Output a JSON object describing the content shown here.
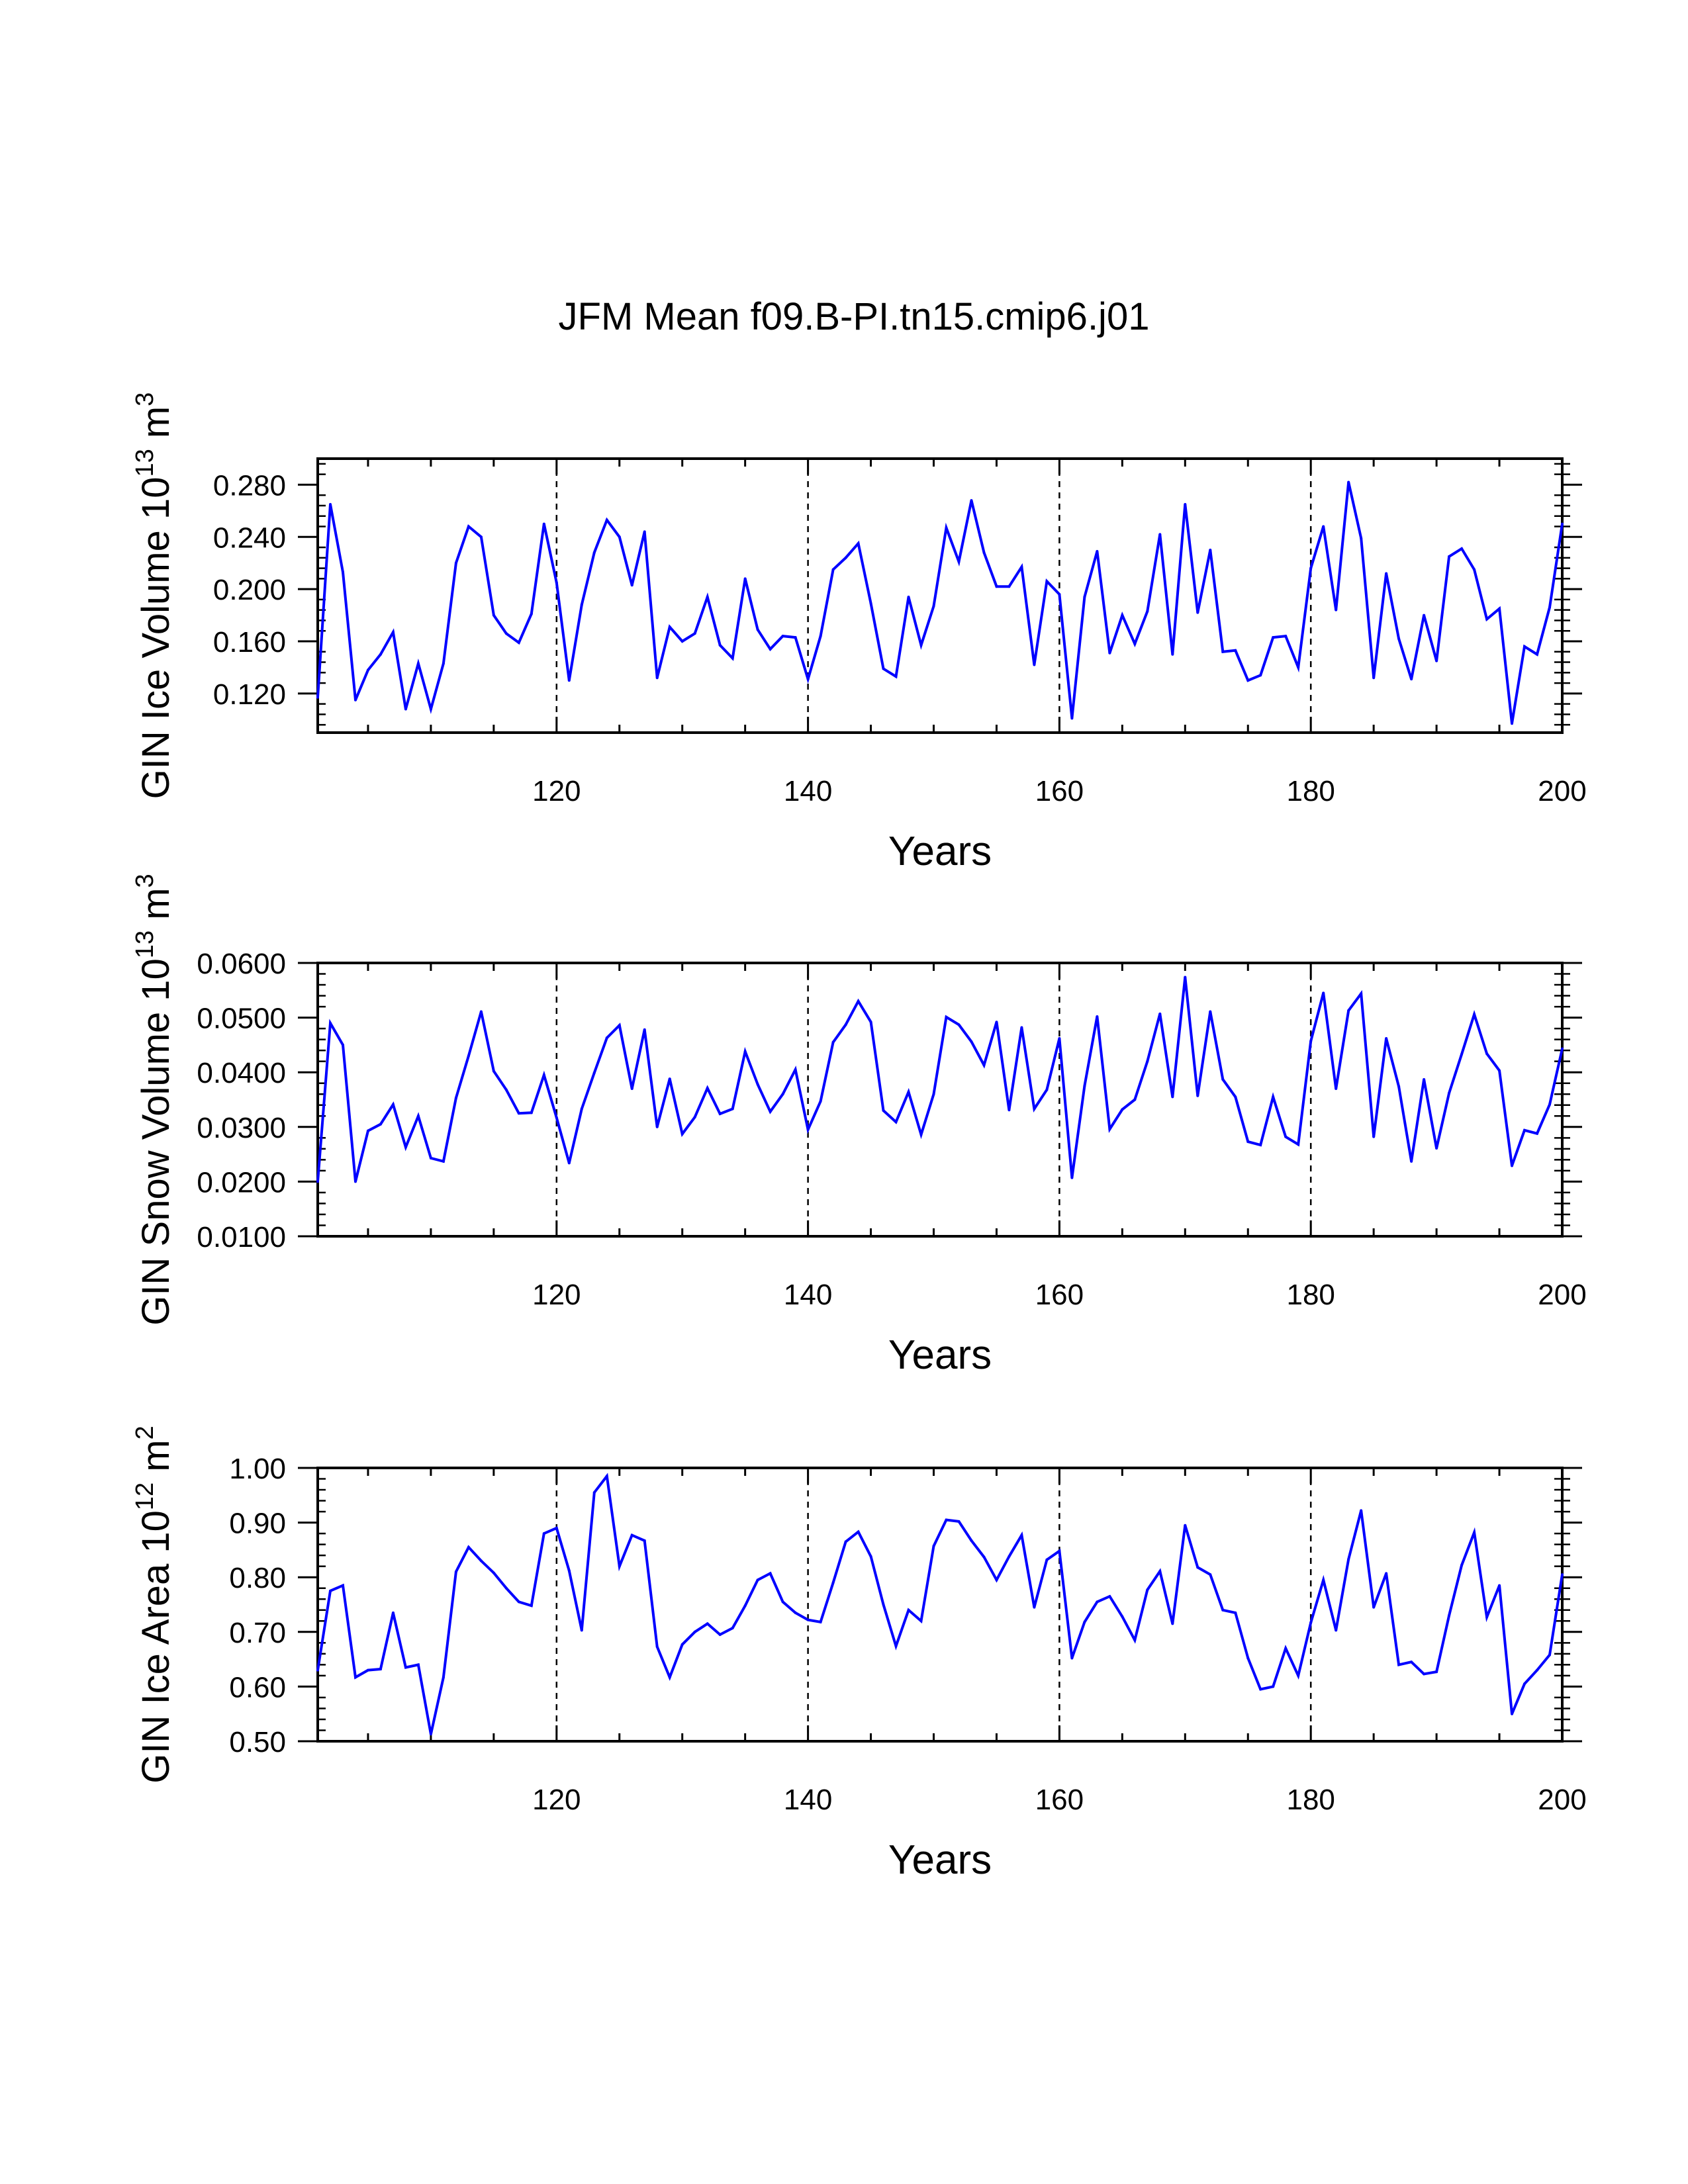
{
  "title": "JFM Mean f09.B-PI.tn15.cmip6.j01",
  "line_color": "#0000ff",
  "chart_data": [
    {
      "type": "line",
      "title": "JFM Mean f09.B-PI.tn15.cmip6.j01",
      "xlabel": "Years",
      "ylabel_main": "GIN Ice Volume 10",
      "ylabel_exp": "13",
      "ylabel_unit": " m",
      "ylabel_unit_exp": "3",
      "xlim": [
        101,
        200
      ],
      "ylim": [
        0.09,
        0.3
      ],
      "ymajor": [
        0.12,
        0.16,
        0.2,
        0.24,
        0.28
      ],
      "ytick_labels": [
        "0.120",
        "0.160",
        "0.200",
        "0.240",
        "0.280"
      ],
      "xticks": [
        120,
        140,
        160,
        180,
        200
      ],
      "xtick_labels": [
        "120",
        "140",
        "160",
        "180",
        "200"
      ],
      "vlines": [
        120,
        140,
        160,
        180
      ],
      "series": [
        {
          "name": "GIN Ice Volume",
          "x_start": 101,
          "values": [
            0.117,
            0.265,
            0.213,
            0.115,
            0.138,
            0.15,
            0.167,
            0.108,
            0.143,
            0.108,
            0.143,
            0.22,
            0.248,
            0.24,
            0.18,
            0.166,
            0.159,
            0.181,
            0.25,
            0.205,
            0.13,
            0.188,
            0.228,
            0.253,
            0.24,
            0.203,
            0.244,
            0.132,
            0.171,
            0.16,
            0.166,
            0.194,
            0.157,
            0.147,
            0.208,
            0.169,
            0.154,
            0.164,
            0.163,
            0.131,
            0.164,
            0.215,
            0.224,
            0.235,
            0.189,
            0.139,
            0.133,
            0.194,
            0.157,
            0.187,
            0.247,
            0.221,
            0.268,
            0.228,
            0.202,
            0.202,
            0.217,
            0.142,
            0.206,
            0.196,
            0.101,
            0.194,
            0.229,
            0.151,
            0.18,
            0.158,
            0.183,
            0.242,
            0.15,
            0.265,
            0.182,
            0.23,
            0.152,
            0.153,
            0.13,
            0.134,
            0.163,
            0.164,
            0.14,
            0.216,
            0.248,
            0.184,
            0.282,
            0.239,
            0.132,
            0.212,
            0.162,
            0.131,
            0.18,
            0.145,
            0.225,
            0.231,
            0.215,
            0.177,
            0.185,
            0.097,
            0.156,
            0.15,
            0.186,
            0.25
          ]
        }
      ]
    },
    {
      "type": "line",
      "xlabel": "Years",
      "ylabel_main": "GIN Snow Volume 10",
      "ylabel_exp": "13",
      "ylabel_unit": " m",
      "ylabel_unit_exp": "3",
      "xlim": [
        101,
        200
      ],
      "ylim": [
        0.01,
        0.06
      ],
      "ymajor": [
        0.01,
        0.02,
        0.03,
        0.04,
        0.05,
        0.06
      ],
      "ytick_labels": [
        "0.0100",
        "0.0200",
        "0.0300",
        "0.0400",
        "0.0500",
        "0.0600"
      ],
      "xticks": [
        120,
        140,
        160,
        180,
        200
      ],
      "xtick_labels": [
        "120",
        "140",
        "160",
        "180",
        "200"
      ],
      "vlines": [
        120,
        140,
        160,
        180
      ],
      "series": [
        {
          "name": "GIN Snow Volume",
          "x_start": 101,
          "values": [
            0.02,
            0.049,
            0.045,
            0.02,
            0.0293,
            0.0305,
            0.0341,
            0.0263,
            0.032,
            0.0243,
            0.0237,
            0.0353,
            0.043,
            0.0511,
            0.0402,
            0.0368,
            0.0325,
            0.0326,
            0.0395,
            0.0317,
            0.0234,
            0.0333,
            0.0399,
            0.0463,
            0.0486,
            0.037,
            0.0478,
            0.03,
            0.0388,
            0.0287,
            0.0318,
            0.0371,
            0.0324,
            0.0333,
            0.0438,
            0.0378,
            0.0328,
            0.036,
            0.0405,
            0.0295,
            0.0347,
            0.0455,
            0.0487,
            0.053,
            0.0492,
            0.033,
            0.0309,
            0.0364,
            0.0286,
            0.036,
            0.0501,
            0.0487,
            0.0456,
            0.0413,
            0.0492,
            0.0331,
            0.0482,
            0.0333,
            0.0368,
            0.0462,
            0.0207,
            0.0375,
            0.0502,
            0.0296,
            0.0332,
            0.035,
            0.042,
            0.0507,
            0.0355,
            0.0574,
            0.0357,
            0.0511,
            0.0387,
            0.0355,
            0.0273,
            0.0267,
            0.0355,
            0.0282,
            0.0268,
            0.0457,
            0.0545,
            0.037,
            0.0513,
            0.0544,
            0.0282,
            0.0462,
            0.0374,
            0.0237,
            0.0387,
            0.0261,
            0.0362,
            0.0433,
            0.0506,
            0.0434,
            0.0403,
            0.0229,
            0.0294,
            0.0288,
            0.0341,
            0.0443
          ]
        }
      ]
    },
    {
      "type": "line",
      "xlabel": "Years",
      "ylabel_main": "GIN Ice Area 10",
      "ylabel_exp": "12",
      "ylabel_unit": " m",
      "ylabel_unit_exp": "2",
      "xlim": [
        101,
        200
      ],
      "ylim": [
        0.5,
        1.0
      ],
      "ymajor": [
        0.5,
        0.6,
        0.7,
        0.8,
        0.9,
        1.0
      ],
      "ytick_labels": [
        "0.50",
        "0.60",
        "0.70",
        "0.80",
        "0.90",
        "1.00"
      ],
      "xticks": [
        120,
        140,
        160,
        180,
        200
      ],
      "xtick_labels": [
        "120",
        "140",
        "160",
        "180",
        "200"
      ],
      "vlines": [
        120,
        140,
        160,
        180
      ],
      "series": [
        {
          "name": "GIN Ice Area",
          "x_start": 101,
          "values": [
            0.63,
            0.775,
            0.785,
            0.617,
            0.63,
            0.632,
            0.735,
            0.635,
            0.64,
            0.513,
            0.617,
            0.81,
            0.855,
            0.83,
            0.808,
            0.78,
            0.755,
            0.748,
            0.88,
            0.89,
            0.812,
            0.703,
            0.955,
            0.985,
            0.82,
            0.877,
            0.867,
            0.673,
            0.617,
            0.677,
            0.7,
            0.715,
            0.695,
            0.707,
            0.748,
            0.795,
            0.807,
            0.755,
            0.735,
            0.722,
            0.718,
            0.79,
            0.865,
            0.883,
            0.838,
            0.75,
            0.674,
            0.74,
            0.72,
            0.857,
            0.905,
            0.902,
            0.867,
            0.837,
            0.795,
            0.838,
            0.877,
            0.745,
            0.832,
            0.848,
            0.652,
            0.718,
            0.755,
            0.765,
            0.728,
            0.685,
            0.777,
            0.811,
            0.715,
            0.895,
            0.818,
            0.805,
            0.74,
            0.735,
            0.652,
            0.595,
            0.6,
            0.67,
            0.62,
            0.717,
            0.795,
            0.703,
            0.833,
            0.922,
            0.745,
            0.807,
            0.64,
            0.645,
            0.623,
            0.627,
            0.73,
            0.822,
            0.882,
            0.727,
            0.785,
            0.55,
            0.605,
            0.63,
            0.658,
            0.805
          ]
        }
      ]
    }
  ]
}
